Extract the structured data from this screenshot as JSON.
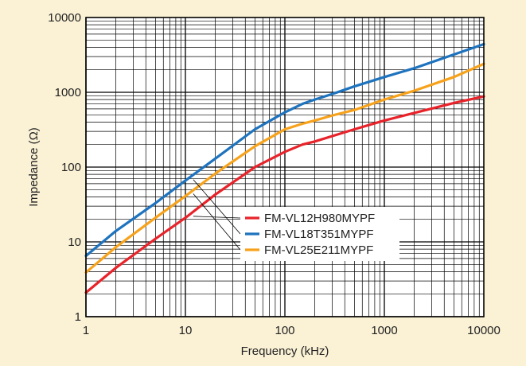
{
  "chart_data": {
    "type": "line",
    "title": "",
    "xlabel": "Frequency (kHz)",
    "ylabel": "Impedance (Ω)",
    "x_scale": "log",
    "y_scale": "log",
    "xlim": [
      1,
      10000
    ],
    "ylim": [
      1,
      10000
    ],
    "x_ticks": [
      1,
      10,
      100,
      1000,
      10000
    ],
    "x_tick_labels": [
      "1",
      "10",
      "100",
      "1000",
      "10000"
    ],
    "y_ticks": [
      1,
      10,
      100,
      1000,
      10000
    ],
    "y_tick_labels": [
      "1",
      "10",
      "100",
      "1000",
      "10000"
    ],
    "grid": true,
    "legend_position": "center-right",
    "colors": {
      "background": "#fbf2d6",
      "plot_background": "#ffffff",
      "grid": "#000000"
    },
    "series": [
      {
        "name": "FM-VL12H980MYPF",
        "color": "#e8232a",
        "points": [
          [
            1,
            2.1
          ],
          [
            2,
            4.5
          ],
          [
            5,
            11
          ],
          [
            10,
            21
          ],
          [
            20,
            43
          ],
          [
            50,
            100
          ],
          [
            100,
            160
          ],
          [
            150,
            200
          ],
          [
            200,
            220
          ],
          [
            300,
            260
          ],
          [
            500,
            320
          ],
          [
            1000,
            420
          ],
          [
            2000,
            530
          ],
          [
            5000,
            720
          ],
          [
            10000,
            880
          ]
        ]
      },
      {
        "name": "FM-VL18T351MYPF",
        "color": "#1e73be",
        "points": [
          [
            1,
            6.5
          ],
          [
            2,
            14
          ],
          [
            5,
            33
          ],
          [
            10,
            66
          ],
          [
            20,
            130
          ],
          [
            50,
            320
          ],
          [
            100,
            540
          ],
          [
            150,
            700
          ],
          [
            200,
            800
          ],
          [
            300,
            950
          ],
          [
            500,
            1200
          ],
          [
            1000,
            1600
          ],
          [
            2000,
            2100
          ],
          [
            5000,
            3200
          ],
          [
            10000,
            4400
          ]
        ]
      },
      {
        "name": "FM-VL25E211MYPF",
        "color": "#f7a21b",
        "points": [
          [
            1,
            3.9
          ],
          [
            2,
            8.5
          ],
          [
            5,
            21
          ],
          [
            10,
            41
          ],
          [
            20,
            82
          ],
          [
            50,
            190
          ],
          [
            100,
            320
          ],
          [
            150,
            380
          ],
          [
            200,
            420
          ],
          [
            300,
            490
          ],
          [
            500,
            580
          ],
          [
            1000,
            800
          ],
          [
            2000,
            1050
          ],
          [
            5000,
            1600
          ],
          [
            10000,
            2400
          ]
        ]
      }
    ],
    "annotation_target": {
      "x": 12,
      "y_values": [
        22,
        68,
        44
      ]
    }
  }
}
